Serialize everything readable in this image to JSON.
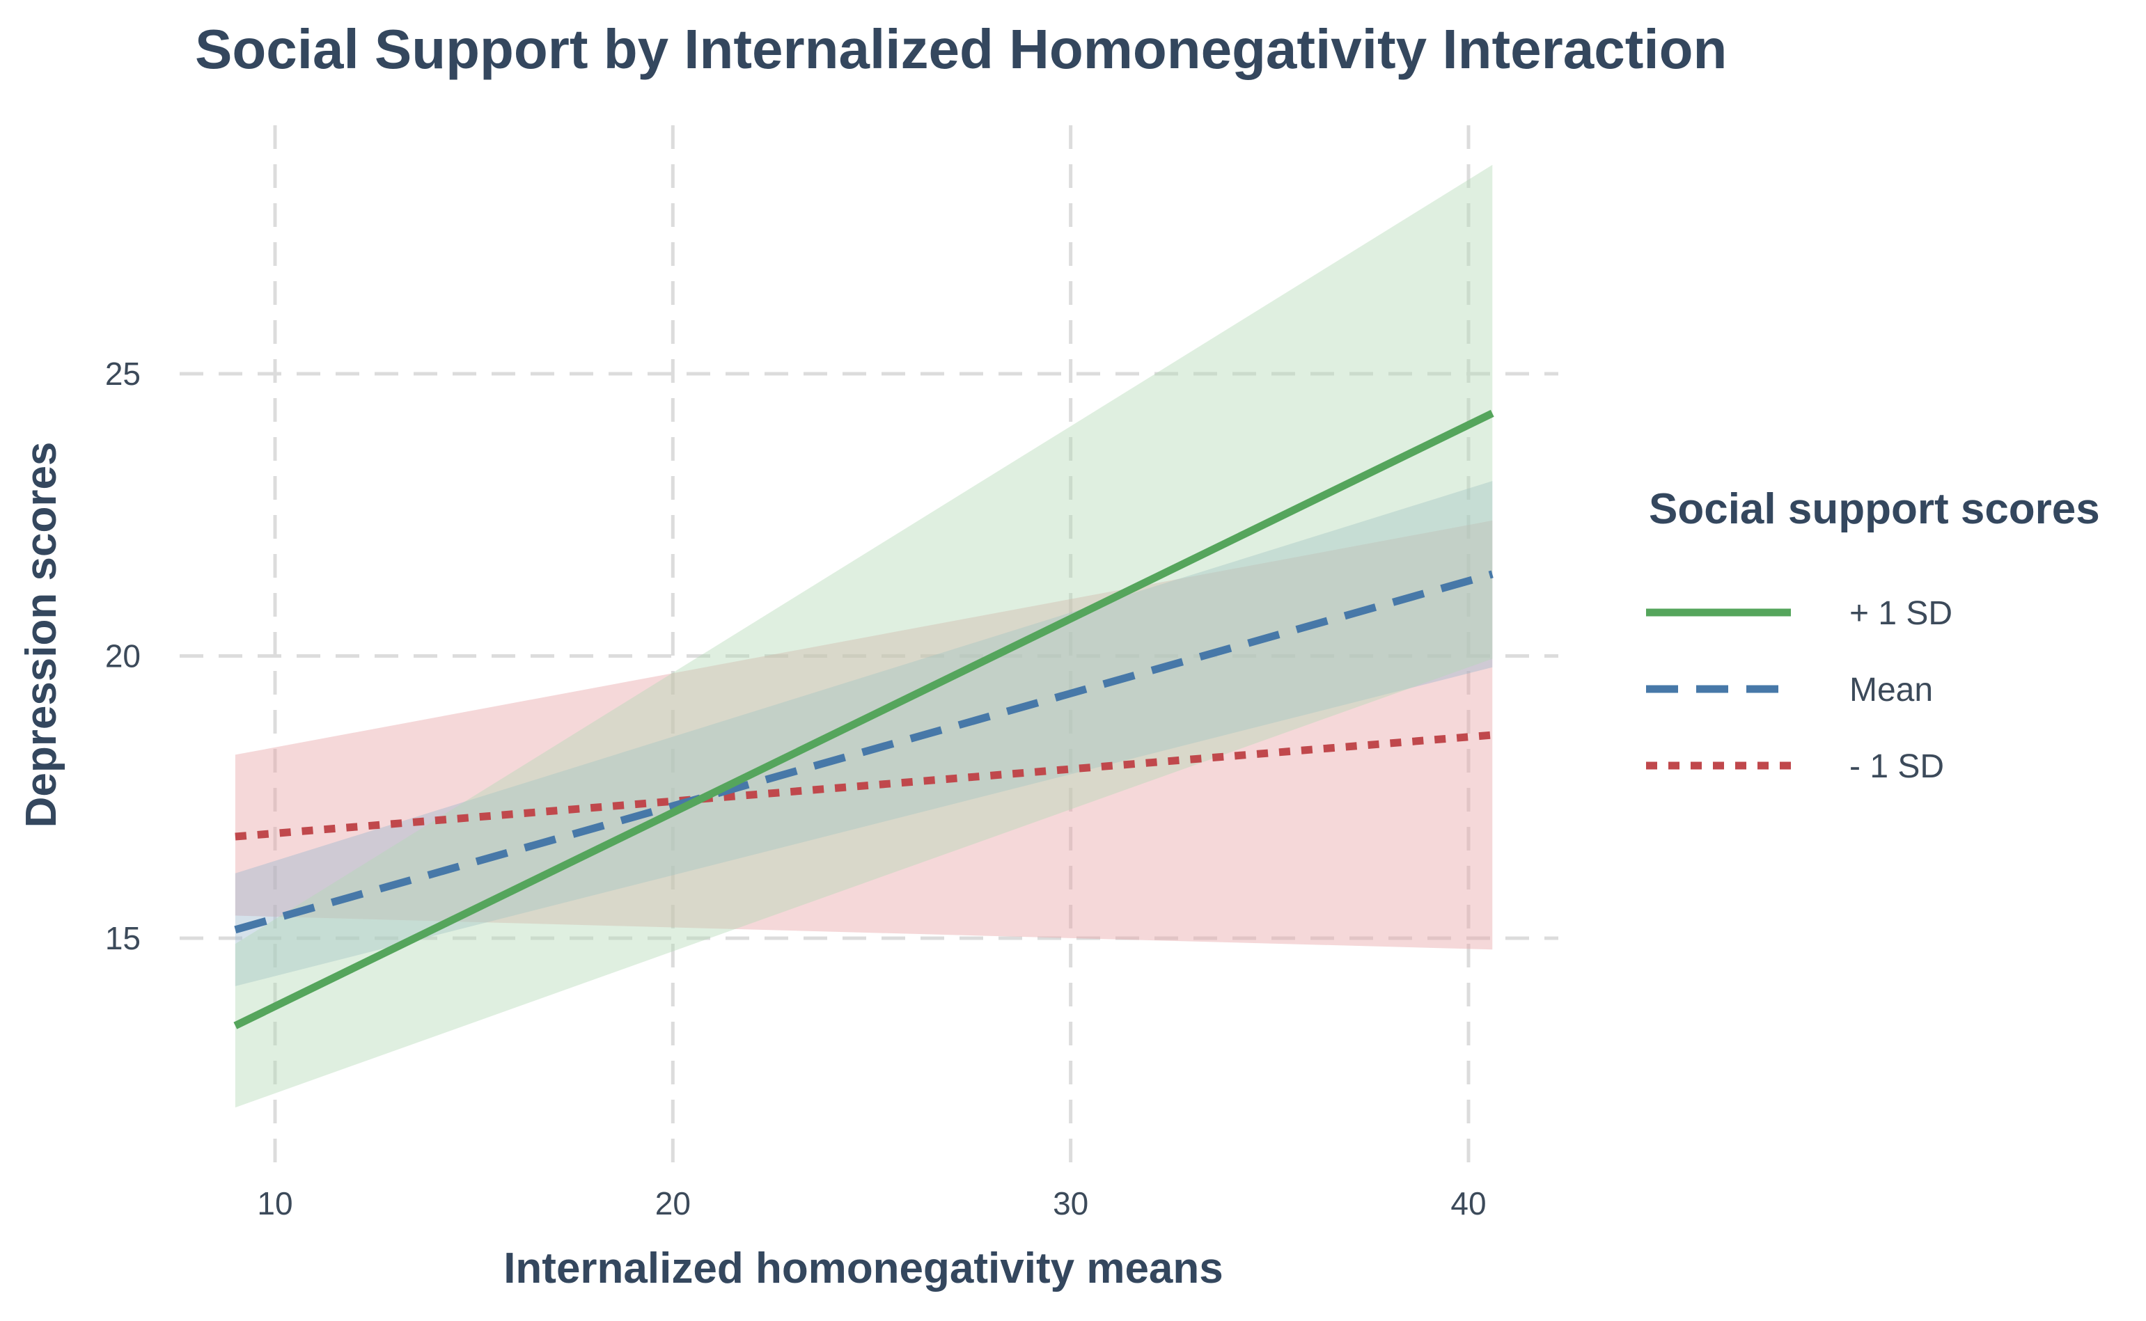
{
  "chart_data": {
    "type": "line",
    "title": "Social Support by Internalized Homonegativity Interaction",
    "xlabel": "Internalized homonegativity means",
    "ylabel": "Depression scores",
    "xlim": [
      9,
      40.6
    ],
    "ylim": [
      11.5,
      29
    ],
    "x_ticks": [
      10,
      20,
      30,
      40
    ],
    "y_ticks": [
      15,
      20,
      25
    ],
    "grid": true,
    "legend_title": "Social support scores",
    "legend_position": "right",
    "series": [
      {
        "name": "- 1 SD",
        "color": "#c0484c",
        "band_color": "#e8a2a4",
        "dash": "dotted",
        "x": [
          9.0,
          40.6
        ],
        "y": [
          16.8,
          18.6
        ],
        "lower": [
          15.4,
          14.8
        ],
        "upper": [
          18.25,
          22.4
        ]
      },
      {
        "name": "Mean",
        "color": "#4778a8",
        "band_color": "#9bb7cc",
        "dash": "dashed",
        "x": [
          9.0,
          40.6
        ],
        "y": [
          15.15,
          21.45
        ],
        "lower": [
          14.15,
          19.8
        ],
        "upper": [
          16.15,
          23.1
        ]
      },
      {
        "name": "+ 1 SD",
        "color": "#55a55c",
        "band_color": "#b3d9b4",
        "dash": "solid",
        "x": [
          9.0,
          40.6
        ],
        "y": [
          13.45,
          24.3
        ],
        "lower": [
          12.0,
          19.95
        ],
        "upper": [
          14.9,
          28.7
        ]
      }
    ],
    "legend_order": [
      "+ 1 SD",
      "Mean",
      "- 1 SD"
    ]
  }
}
